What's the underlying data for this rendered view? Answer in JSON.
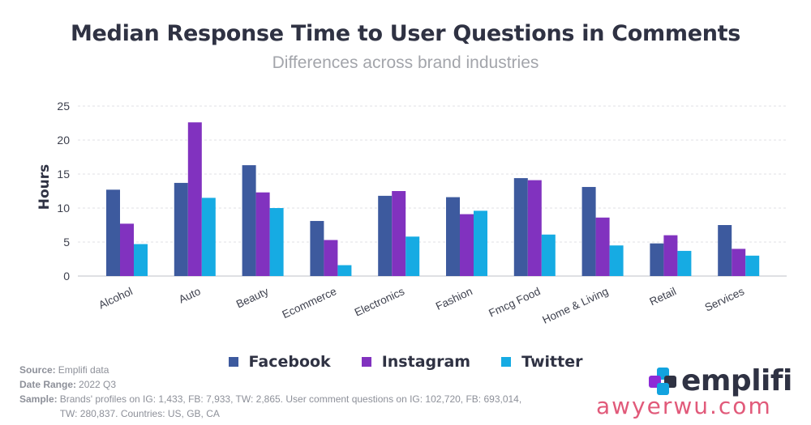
{
  "header": {
    "title": "Median Response Time to User Questions in Comments",
    "subtitle": "Differences across brand industries"
  },
  "colors": {
    "facebook": "#3d5a9e",
    "instagram": "#8132bf",
    "twitter": "#16abe3",
    "grid": "#e0e1e5",
    "axis_text": "#3c3f4c",
    "brand_blue": "#12a3df",
    "brand_purple": "#8d2bd6",
    "brand_navy": "#2f3243"
  },
  "chart_data": {
    "type": "bar",
    "ylabel": "Hours",
    "ylim": [
      0,
      25
    ],
    "yticks": [
      0,
      5,
      10,
      15,
      20,
      25
    ],
    "grid": true,
    "legend_position": "bottom",
    "categories": [
      "Alcohol",
      "Auto",
      "Beauty",
      "Ecommerce",
      "Electronics",
      "Fashion",
      "Fmcg Food",
      "Home & Living",
      "Retail",
      "Services"
    ],
    "series": [
      {
        "name": "Facebook",
        "key": "facebook",
        "values": [
          12.7,
          13.7,
          16.3,
          8.1,
          11.8,
          11.6,
          14.4,
          13.1,
          4.8,
          7.5
        ]
      },
      {
        "name": "Instagram",
        "key": "instagram",
        "values": [
          7.7,
          22.6,
          12.3,
          5.3,
          12.5,
          9.1,
          14.1,
          8.6,
          6.0,
          4.0
        ]
      },
      {
        "name": "Twitter",
        "key": "twitter",
        "values": [
          4.7,
          11.5,
          10.0,
          1.6,
          5.8,
          9.6,
          6.1,
          4.5,
          3.7,
          3.0
        ]
      }
    ]
  },
  "notes": {
    "source_label": "Source:",
    "source_value": "Emplifi data",
    "date_label": "Date Range:",
    "date_value": "2022 Q3",
    "sample_label": "Sample:",
    "sample_value": "Brands' profiles on IG: 1,433, FB: 7,933, TW: 2,865. User comment questions on IG: 102,720, FB: 693,014, TW: 280,837. Countries: US, GB, CA"
  },
  "brand": {
    "name": "emplifi"
  },
  "watermark": {
    "text": "awyerwu.com"
  }
}
